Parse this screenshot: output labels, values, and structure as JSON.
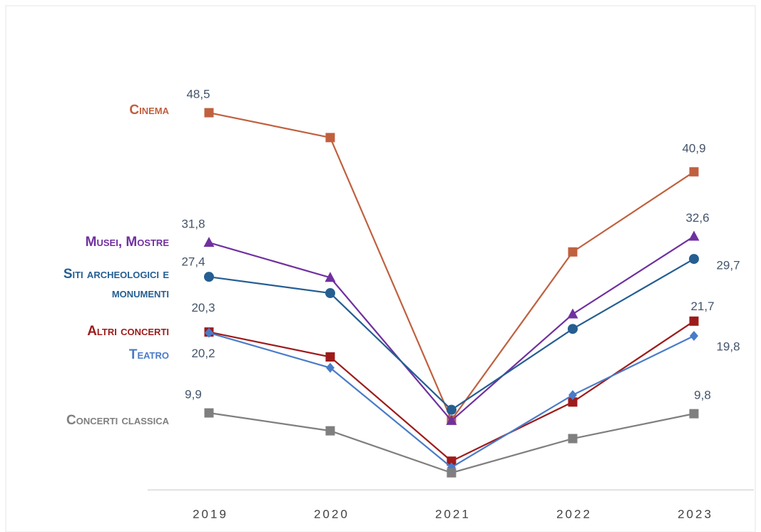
{
  "chart_data": {
    "type": "line",
    "x": [
      "2019",
      "2020",
      "2021",
      "2022",
      "2023"
    ],
    "ylim": [
      0,
      60
    ],
    "series": [
      {
        "name": "Cinema",
        "color": "#c0603f",
        "marker": "square",
        "values": [
          48.5,
          45.3,
          9.0,
          30.6,
          40.9
        ],
        "value_labels": [
          "48,5",
          null,
          null,
          null,
          "40,9"
        ]
      },
      {
        "name": "Musei, Mostre",
        "color": "#7030a0",
        "marker": "triangle",
        "values": [
          31.8,
          27.3,
          8.9,
          22.6,
          32.6
        ],
        "value_labels": [
          "31,8",
          null,
          null,
          null,
          "32,6"
        ]
      },
      {
        "name": "Siti archeologici e monumenti",
        "color": "#255e91",
        "marker": "circle",
        "values": [
          27.4,
          25.3,
          10.3,
          20.7,
          29.7
        ],
        "value_labels": [
          "27,4",
          null,
          null,
          null,
          "29,7"
        ]
      },
      {
        "name": "Altri concerti",
        "color": "#9e1b1b",
        "marker": "square",
        "values": [
          20.3,
          17.1,
          3.7,
          11.3,
          21.7
        ],
        "value_labels": [
          "20,3",
          null,
          null,
          null,
          "21,7"
        ]
      },
      {
        "name": "Teatro",
        "color": "#4a7bc8",
        "marker": "diamond",
        "values": [
          20.2,
          15.7,
          2.9,
          12.2,
          19.8
        ],
        "value_labels": [
          "20,2",
          null,
          null,
          null,
          "19,8"
        ]
      },
      {
        "name": "Concerti classica",
        "color": "#7f7f7f",
        "marker": "square",
        "values": [
          9.9,
          7.6,
          2.2,
          6.6,
          9.8
        ],
        "value_labels": [
          "9,9",
          null,
          null,
          null,
          "9,8"
        ]
      }
    ]
  }
}
